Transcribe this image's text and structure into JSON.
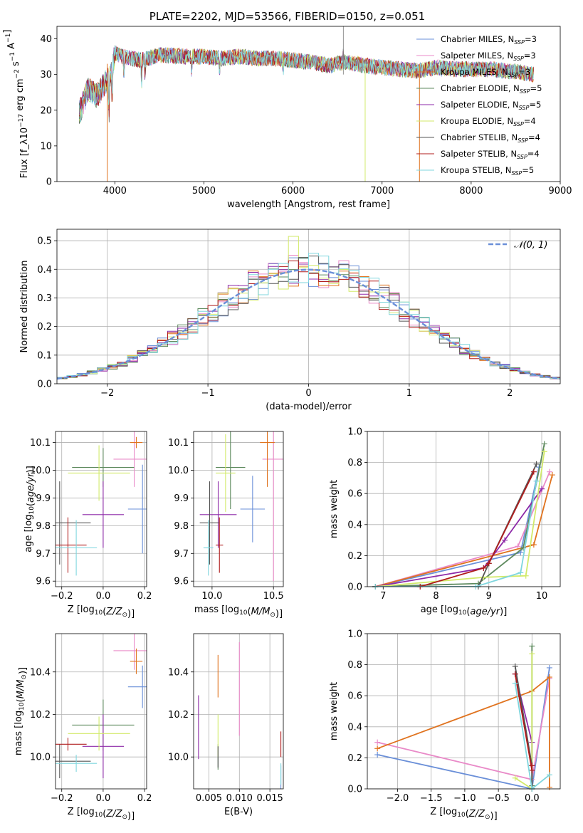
{
  "colors": [
    "#6a8fd8",
    "#e98ac8",
    "#e0731f",
    "#5e8a5e",
    "#8e2aa8",
    "#d2ea6a",
    "#555555",
    "#b01c1c",
    "#7fd6de"
  ],
  "chart_data": [
    {
      "id": "spectrum",
      "type": "line",
      "title": "PLATE=2202, MJD=53566, FIBERID=0150, z=0.051",
      "xlabel": "wavelength [Angstrom, rest frame]",
      "ylabel": "Flux [f_λ10^-17 erg cm^-2 s^-1 A^-1]",
      "xlim": [
        3350,
        9000
      ],
      "ylim": [
        0,
        43.5
      ],
      "xticks": [
        4000,
        5000,
        6000,
        7000,
        8000,
        9000
      ],
      "yticks": [
        0,
        10,
        20,
        30,
        40
      ],
      "grid": false,
      "legend": "top-right",
      "approx_continuum": {
        "x": [
          3600,
          3700,
          3800,
          3900,
          3950,
          4000,
          4100,
          4300,
          4500,
          4800,
          5000,
          5200,
          5400,
          5600,
          5800,
          6000,
          6200,
          6400,
          6600,
          6800,
          7000,
          7200,
          7400,
          7600,
          7800,
          8000,
          8200,
          8400,
          8600,
          8700
        ],
        "y": [
          19,
          26,
          24,
          28,
          29,
          36,
          35,
          34,
          35.5,
          35,
          35,
          34.5,
          35,
          34.5,
          34.5,
          34,
          33.5,
          32.5,
          33.5,
          32.5,
          32,
          31.5,
          31,
          32,
          31.5,
          31.5,
          31.5,
          31,
          30.5,
          30
        ]
      },
      "series": [
        {
          "name": "Chabrier MILES",
          "nssp": 3
        },
        {
          "name": "Salpeter MILES",
          "nssp": 3
        },
        {
          "name": "Kroupa MILES",
          "nssp": 3
        },
        {
          "name": "Chabrier ELODIE",
          "nssp": 5
        },
        {
          "name": "Salpeter ELODIE",
          "nssp": 5
        },
        {
          "name": "Kroupa ELODIE",
          "nssp": 4
        },
        {
          "name": "Chabrier STELIB",
          "nssp": 4
        },
        {
          "name": "Salpeter STELIB",
          "nssp": 4
        },
        {
          "name": "Kroupa STELIB",
          "nssp": 5
        }
      ]
    },
    {
      "id": "residuals",
      "type": "line",
      "xlabel": "(data-model)/error",
      "ylabel": "Normed distribution",
      "xlim": [
        -2.5,
        2.5
      ],
      "ylim": [
        0,
        0.54
      ],
      "xticks": [
        -2,
        -1,
        0,
        1,
        2
      ],
      "yticks": [
        0.0,
        0.1,
        0.2,
        0.3,
        0.4,
        0.5
      ],
      "grid": true,
      "legend": "top-right",
      "reference": {
        "name": "𝒩(0, 1)",
        "mean": 0,
        "sigma": 1
      },
      "bin_width": 0.1,
      "bin_start": -2.5
    },
    {
      "id": "age-vs-Z",
      "type": "scatter",
      "xlabel": "Z [log10(Z/Z⊙)]",
      "ylabel": "age  [log10(age/yr)]",
      "xlim": [
        -0.23,
        0.21
      ],
      "ylim": [
        9.58,
        10.14
      ],
      "xticks": [
        -0.2,
        0.0,
        0.2
      ],
      "yticks": [
        9.6,
        9.7,
        9.8,
        9.9,
        10.0,
        10.1
      ],
      "grid": true,
      "points": [
        {
          "x": 0.19,
          "xerr": 0.07,
          "y": 9.86,
          "yerr": 0.16
        },
        {
          "x": 0.15,
          "xerr": 0.1,
          "y": 10.04,
          "yerr": 0.1
        },
        {
          "x": 0.16,
          "xerr": 0.03,
          "y": 10.1,
          "yerr": 0.02
        },
        {
          "x": 0.0,
          "xerr": 0.15,
          "y": 10.01,
          "yerr": 0.07
        },
        {
          "x": 0.0,
          "xerr": 0.1,
          "y": 9.84,
          "yerr": 0.12
        },
        {
          "x": -0.02,
          "xerr": 0.15,
          "y": 9.99,
          "yerr": 0.1
        },
        {
          "x": -0.21,
          "xerr": 0.15,
          "y": 9.81,
          "yerr": 0.15
        },
        {
          "x": -0.17,
          "xerr": 0.09,
          "y": 9.73,
          "yerr": 0.1
        },
        {
          "x": -0.13,
          "xerr": 0.1,
          "y": 9.72,
          "yerr": 0.1
        }
      ]
    },
    {
      "id": "age-vs-mass",
      "type": "scatter",
      "xlabel": "mass [log10(M/M⊙)]",
      "ylabel": "",
      "xlim": [
        9.85,
        10.58
      ],
      "ylim": [
        9.58,
        10.14
      ],
      "xticks": [
        10.0,
        10.5
      ],
      "yticks": [
        9.6,
        9.7,
        9.8,
        9.9,
        10.0,
        10.1
      ],
      "grid": true,
      "points": [
        {
          "x": 10.33,
          "xerr": 0.1,
          "y": 9.86,
          "yerr": 0.12
        },
        {
          "x": 10.5,
          "xerr": 0.09,
          "y": 10.04,
          "yerr": 0.44
        },
        {
          "x": 10.45,
          "xerr": 0.06,
          "y": 10.1,
          "yerr": 0.16
        },
        {
          "x": 10.15,
          "xerr": 0.12,
          "y": 10.01,
          "yerr": 0.15
        },
        {
          "x": 10.05,
          "xerr": 0.15,
          "y": 9.84,
          "yerr": 0.12
        },
        {
          "x": 10.11,
          "xerr": 0.08,
          "y": 9.99,
          "yerr": 0.14
        },
        {
          "x": 9.98,
          "xerr": 0.08,
          "y": 9.81,
          "yerr": 0.15
        },
        {
          "x": 10.06,
          "xerr": 0.03,
          "y": 9.73,
          "yerr": 0.1
        },
        {
          "x": 9.97,
          "xerr": 0.04,
          "y": 9.72,
          "yerr": 0.1
        }
      ]
    },
    {
      "id": "weight-vs-age",
      "type": "line",
      "xlabel": "age  [log10(age/yr)]",
      "ylabel": "mass weight",
      "xlim": [
        6.7,
        10.35
      ],
      "ylim": [
        0.0,
        1.0
      ],
      "xticks": [
        7,
        8,
        9,
        10
      ],
      "yticks": [
        0.0,
        0.2,
        0.4,
        0.6,
        0.8,
        1.0
      ],
      "grid": true,
      "series": [
        {
          "x": [
            6.85,
            9.6,
            9.95
          ],
          "y": [
            0.0,
            0.22,
            0.77
          ]
        },
        {
          "x": [
            6.85,
            9.55,
            10.15
          ],
          "y": [
            0.0,
            0.26,
            0.74
          ]
        },
        {
          "x": [
            6.85,
            9.85,
            10.2
          ],
          "y": [
            0.0,
            0.27,
            0.72
          ]
        },
        {
          "x": [
            6.85,
            8.8,
            9.65,
            10.05
          ],
          "y": [
            0.0,
            0.02,
            0.25,
            0.92
          ]
        },
        {
          "x": [
            6.85,
            8.9,
            9.3,
            10.0
          ],
          "y": [
            0.0,
            0.12,
            0.3,
            0.63
          ]
        },
        {
          "x": [
            6.85,
            8.9,
            9.7,
            10.05
          ],
          "y": [
            0.0,
            0.06,
            0.07,
            0.87
          ]
        },
        {
          "x": [
            6.85,
            8.8,
            9.0,
            9.9
          ],
          "y": [
            0.0,
            0.0,
            0.15,
            0.79
          ]
        },
        {
          "x": [
            7.7,
            8.9,
            9.0,
            9.85
          ],
          "y": [
            0.0,
            0.12,
            0.15,
            0.74
          ]
        },
        {
          "x": [
            6.85,
            8.75,
            9.6,
            9.9
          ],
          "y": [
            0.0,
            0.0,
            0.09,
            0.68
          ]
        }
      ]
    },
    {
      "id": "mass-vs-Z",
      "type": "scatter",
      "xlabel": "Z [log10(Z/Z⊙)]",
      "ylabel": "mass [log10(M/M⊙)]",
      "xlim": [
        -0.23,
        0.21
      ],
      "ylim": [
        9.85,
        10.58
      ],
      "xticks": [
        -0.2,
        0.0,
        0.2
      ],
      "yticks": [
        10.0,
        10.2,
        10.4
      ],
      "grid": true,
      "points": [
        {
          "x": 0.19,
          "xerr": 0.07,
          "y": 10.33,
          "yerr": 0.1
        },
        {
          "x": 0.15,
          "xerr": 0.1,
          "y": 10.5,
          "yerr": 0.09
        },
        {
          "x": 0.16,
          "xerr": 0.03,
          "y": 10.45,
          "yerr": 0.06
        },
        {
          "x": 0.0,
          "xerr": 0.15,
          "y": 10.15,
          "yerr": 0.12
        },
        {
          "x": 0.0,
          "xerr": 0.1,
          "y": 10.05,
          "yerr": 0.15
        },
        {
          "x": -0.02,
          "xerr": 0.15,
          "y": 10.11,
          "yerr": 0.08
        },
        {
          "x": -0.21,
          "xerr": 0.15,
          "y": 9.98,
          "yerr": 0.08
        },
        {
          "x": -0.17,
          "xerr": 0.09,
          "y": 10.06,
          "yerr": 0.03
        },
        {
          "x": -0.13,
          "xerr": 0.1,
          "y": 9.97,
          "yerr": 0.04
        }
      ]
    },
    {
      "id": "mass-vs-ebv",
      "type": "scatter",
      "xlabel": "E(B-V)",
      "ylabel": "",
      "xlim": [
        0.0025,
        0.0172
      ],
      "ylim": [
        9.85,
        10.58
      ],
      "xticks": [
        0.005,
        0.01,
        0.015
      ],
      "yticks": [
        10.0,
        10.2,
        10.4
      ],
      "grid": true,
      "points": [
        {
          "x": 0.0168,
          "xerr": 0.0,
          "y": 9.9,
          "yerr": 0.06
        },
        {
          "x": 0.01,
          "xerr": 0.0,
          "y": 10.32,
          "yerr": 0.22
        },
        {
          "x": 0.0065,
          "xerr": 0.0,
          "y": 10.38,
          "yerr": 0.1
        },
        {
          "x": 0.0065,
          "xerr": 0.0,
          "y": 10.0,
          "yerr": 0.06
        },
        {
          "x": 0.0033,
          "xerr": 0.0,
          "y": 10.14,
          "yerr": 0.15
        },
        {
          "x": 0.0065,
          "xerr": 0.0,
          "y": 10.1,
          "yerr": 0.1
        },
        {
          "x": 0.0065,
          "xerr": 0.0,
          "y": 10.0,
          "yerr": 0.05
        },
        {
          "x": 0.0168,
          "xerr": 0.0,
          "y": 10.06,
          "yerr": 0.06
        },
        {
          "x": 0.0168,
          "xerr": 0.0,
          "y": 9.92,
          "yerr": 0.05
        }
      ]
    },
    {
      "id": "weight-vs-Z",
      "type": "line",
      "xlabel": "Z [log10(Z/Z⊙)]",
      "ylabel": "mass weight",
      "xlim": [
        -2.45,
        0.42
      ],
      "ylim": [
        0.0,
        1.0
      ],
      "xticks": [
        -2.0,
        -1.5,
        -1.0,
        -0.5,
        0.0
      ],
      "yticks": [
        0.0,
        0.2,
        0.4,
        0.6,
        0.8,
        1.0
      ],
      "grid": true,
      "series": [
        {
          "x": [
            -2.3,
            0.0,
            0.26
          ],
          "y": [
            0.22,
            0.0,
            0.78
          ]
        },
        {
          "x": [
            -2.3,
            0.0,
            0.26
          ],
          "y": [
            0.3,
            0.06,
            0.71
          ]
        },
        {
          "x": [
            -2.3,
            0.0,
            0.26,
            0.26
          ],
          "y": [
            0.26,
            0.63,
            0.72,
            0.01
          ]
        },
        {
          "x": [
            0.0,
            0.0,
            0.0
          ],
          "y": [
            0.92,
            0.02,
            0.0
          ]
        },
        {
          "x": [
            -0.25,
            0.0,
            0.0
          ],
          "y": [
            0.74,
            0.3,
            0.0
          ]
        },
        {
          "x": [
            -0.25,
            0.0,
            0.0
          ],
          "y": [
            0.07,
            0.0,
            0.87
          ]
        },
        {
          "x": [
            -0.25,
            0.0,
            0.0
          ],
          "y": [
            0.79,
            0.15,
            0.0
          ]
        },
        {
          "x": [
            -0.25,
            0.0,
            0.0
          ],
          "y": [
            0.74,
            0.12,
            0.15
          ]
        },
        {
          "x": [
            -0.25,
            0.0,
            0.26
          ],
          "y": [
            0.68,
            0.0,
            0.09
          ]
        }
      ]
    }
  ]
}
